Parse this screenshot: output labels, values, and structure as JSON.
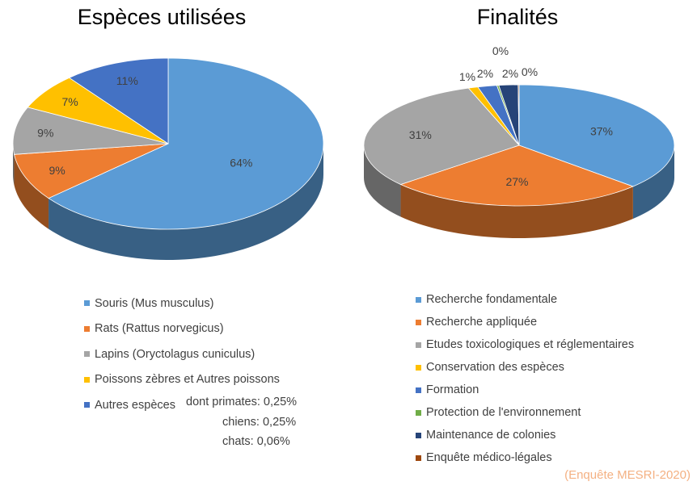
{
  "colors": {
    "text": "#404040",
    "title": "#000000",
    "source": "#f4b183"
  },
  "chart_data": [
    {
      "type": "pie",
      "title": "Espèces utilisées",
      "categories": [
        "Souris (Mus musculus)",
        "Rats (Rattus norvegicus)",
        "Lapins (Oryctolagus cuniculus)",
        "Poissons zèbres et Autres poissons",
        "Autres espèces"
      ],
      "values": [
        64,
        9,
        9,
        7,
        11
      ],
      "data_labels": [
        "64%",
        "9%",
        "9%",
        "7%",
        "11%"
      ],
      "colors": [
        "#5b9bd5",
        "#ed7d31",
        "#a5a5a5",
        "#ffc000",
        "#4472c4"
      ],
      "legend_position": "bottom",
      "legend_note": [
        "dont primates: 0,25%",
        "chiens:  0,25%",
        "chats: 0,06%"
      ]
    },
    {
      "type": "pie",
      "title": "Finalités",
      "categories": [
        "Recherche fondamentale",
        "Recherche appliquée",
        "Etudes toxicologiques et réglementaires",
        "Conservation des espèces",
        "Formation",
        "Protection de l'environnement",
        "Maintenance de colonies",
        "Enquête médico-légales"
      ],
      "values": [
        37,
        27,
        31,
        1,
        2,
        0.2,
        2,
        0.1
      ],
      "data_labels": [
        "37%",
        "27%",
        "31%",
        "1%",
        "2%",
        "0%",
        "2%",
        "0%"
      ],
      "colors": [
        "#5b9bd5",
        "#ed7d31",
        "#a5a5a5",
        "#ffc000",
        "#4472c4",
        "#70ad47",
        "#264478",
        "#9e480e"
      ],
      "legend_position": "bottom"
    }
  ],
  "source_note": "(Enquête MESRI-2020)"
}
